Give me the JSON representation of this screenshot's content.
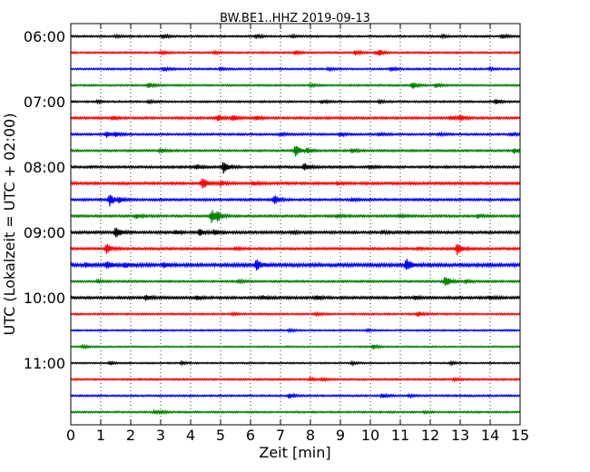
{
  "chart_data": {
    "type": "line",
    "title": "BW.BE1..HHZ 2019-09-13",
    "xlabel": "Zeit  [min]",
    "ylabel": "UTC (Lokalzeit = UTC + 02:00)",
    "xlim": [
      0,
      15
    ],
    "x_ticks": [
      0,
      1,
      2,
      3,
      4,
      5,
      6,
      7,
      8,
      9,
      10,
      11,
      12,
      13,
      14,
      15
    ],
    "x_tick_labels": [
      "0",
      "1",
      "2",
      "3",
      "4",
      "5",
      "6",
      "7",
      "8",
      "9",
      "10",
      "11",
      "12",
      "13",
      "14",
      "15"
    ],
    "grid": true,
    "y_ticks": [
      {
        "label": "06:00",
        "row": 0
      },
      {
        "label": "07:00",
        "row": 4
      },
      {
        "label": "08:00",
        "row": 8
      },
      {
        "label": "09:00",
        "row": 12
      },
      {
        "label": "10:00",
        "row": 16
      },
      {
        "label": "11:00",
        "row": 20
      }
    ],
    "row_minutes": 15,
    "series_colors": [
      "#000000",
      "#ff0000",
      "#0000ff",
      "#008000"
    ],
    "rows": [
      {
        "start": "06:00",
        "color": "#000000",
        "noise": 0.7,
        "spikes": [
          [
            1.5,
            1.2
          ],
          [
            3.1,
            2.2
          ],
          [
            6.2,
            2.0
          ],
          [
            7.4,
            1.3
          ],
          [
            12.4,
            1.1
          ],
          [
            14.4,
            2.5
          ]
        ]
      },
      {
        "start": "06:15",
        "color": "#ff0000",
        "noise": 0.7,
        "spikes": [
          [
            3.0,
            1.4
          ],
          [
            4.8,
            1.2
          ],
          [
            7.5,
            2.0
          ],
          [
            9.5,
            3.0
          ],
          [
            10.2,
            1.5
          ],
          [
            10.3,
            2.4
          ]
        ]
      },
      {
        "start": "06:30",
        "color": "#0000ff",
        "noise": 0.7,
        "spikes": [
          [
            3.1,
            2.4
          ],
          [
            5.0,
            1.5
          ],
          [
            8.6,
            1.4
          ],
          [
            10.7,
            2.0
          ],
          [
            14.0,
            1.2
          ]
        ]
      },
      {
        "start": "06:45",
        "color": "#008000",
        "noise": 0.7,
        "spikes": [
          [
            2.6,
            3.0
          ],
          [
            8.0,
            1.2
          ],
          [
            11.4,
            4.0
          ],
          [
            12.2,
            2.5
          ]
        ]
      },
      {
        "start": "07:00",
        "color": "#000000",
        "noise": 0.7,
        "spikes": [
          [
            0.9,
            1.2
          ],
          [
            2.6,
            1.3
          ],
          [
            8.4,
            1.8
          ],
          [
            10.3,
            1.5
          ],
          [
            14.2,
            2.5
          ]
        ]
      },
      {
        "start": "07:15",
        "color": "#ff0000",
        "noise": 0.9,
        "spikes": [
          [
            1.4,
            2.0
          ],
          [
            4.9,
            3.5
          ],
          [
            5.4,
            3.0
          ],
          [
            6.2,
            2.0
          ],
          [
            12.7,
            2.0
          ],
          [
            13.0,
            3.2
          ]
        ]
      },
      {
        "start": "07:30",
        "color": "#0000ff",
        "noise": 0.8,
        "spikes": [
          [
            1.2,
            3.2
          ],
          [
            1.5,
            2.0
          ],
          [
            7.0,
            1.8
          ],
          [
            9.0,
            2.0
          ],
          [
            10.3,
            1.5
          ],
          [
            12.3,
            1.4
          ],
          [
            14.7,
            1.8
          ]
        ]
      },
      {
        "start": "07:45",
        "color": "#008000",
        "noise": 0.8,
        "spikes": [
          [
            3.0,
            2.5
          ],
          [
            7.5,
            6.5
          ],
          [
            7.9,
            3.0
          ],
          [
            9.4,
            2.0
          ],
          [
            14.8,
            2.8
          ]
        ]
      },
      {
        "start": "08:00",
        "color": "#000000",
        "noise": 0.9,
        "spikes": [
          [
            4.2,
            2.5
          ],
          [
            5.1,
            6.5
          ],
          [
            7.8,
            4.0
          ],
          [
            10.0,
            1.5
          ]
        ]
      },
      {
        "start": "08:15",
        "color": "#ff0000",
        "noise": 1.0,
        "spikes": [
          [
            4.4,
            7.0
          ],
          [
            5.0,
            2.5
          ],
          [
            6.1,
            1.8
          ],
          [
            8.9,
            1.5
          ]
        ]
      },
      {
        "start": "08:30",
        "color": "#0000ff",
        "noise": 0.9,
        "spikes": [
          [
            1.3,
            6.5
          ],
          [
            1.6,
            2.5
          ],
          [
            6.8,
            5.0
          ],
          [
            9.4,
            1.5
          ]
        ]
      },
      {
        "start": "08:45",
        "color": "#008000",
        "noise": 0.9,
        "spikes": [
          [
            2.2,
            2.0
          ],
          [
            4.7,
            7.0
          ],
          [
            4.9,
            4.0
          ],
          [
            8.9,
            1.8
          ],
          [
            11.0,
            1.6
          ],
          [
            13.6,
            1.8
          ]
        ]
      },
      {
        "start": "09:00",
        "color": "#000000",
        "noise": 1.0,
        "spikes": [
          [
            1.5,
            6.5
          ],
          [
            3.5,
            2.0
          ],
          [
            4.3,
            3.5
          ],
          [
            4.8,
            3.0
          ],
          [
            7.4,
            1.3
          ],
          [
            10.4,
            1.4
          ]
        ]
      },
      {
        "start": "09:15",
        "color": "#ff0000",
        "noise": 0.9,
        "spikes": [
          [
            1.2,
            5.5
          ],
          [
            5.5,
            1.4
          ],
          [
            11.6,
            1.4
          ],
          [
            12.9,
            6.5
          ]
        ]
      },
      {
        "start": "09:30",
        "color": "#0000ff",
        "noise": 1.3,
        "spikes": [
          [
            0.5,
            2.5
          ],
          [
            1.2,
            3.5
          ],
          [
            1.8,
            2.5
          ],
          [
            3.1,
            2.5
          ],
          [
            6.2,
            6.0
          ],
          [
            11.2,
            7.0
          ]
        ]
      },
      {
        "start": "09:45",
        "color": "#008000",
        "noise": 0.8,
        "spikes": [
          [
            0.9,
            1.4
          ],
          [
            5.6,
            1.6
          ],
          [
            12.5,
            6.5
          ],
          [
            13.2,
            1.6
          ]
        ]
      },
      {
        "start": "10:00",
        "color": "#000000",
        "noise": 1.0,
        "spikes": [
          [
            2.5,
            3.0
          ],
          [
            4.2,
            2.0
          ],
          [
            6.4,
            2.0
          ],
          [
            8.2,
            2.2
          ],
          [
            11.5,
            1.8
          ],
          [
            14.0,
            1.6
          ]
        ]
      },
      {
        "start": "10:15",
        "color": "#ff0000",
        "noise": 0.7,
        "spikes": [
          [
            5.4,
            1.2
          ],
          [
            8.2,
            1.2
          ],
          [
            11.6,
            2.8
          ]
        ]
      },
      {
        "start": "10:30",
        "color": "#0000ff",
        "noise": 0.6,
        "spikes": [
          [
            7.3,
            1.4
          ],
          [
            9.9,
            1.0
          ]
        ]
      },
      {
        "start": "10:45",
        "color": "#008000",
        "noise": 0.6,
        "spikes": [
          [
            0.4,
            1.5
          ],
          [
            10.1,
            2.5
          ]
        ]
      },
      {
        "start": "11:00",
        "color": "#000000",
        "noise": 0.6,
        "spikes": [
          [
            1.3,
            1.5
          ],
          [
            3.7,
            1.2
          ],
          [
            9.4,
            1.3
          ],
          [
            12.7,
            1.2
          ]
        ]
      },
      {
        "start": "11:15",
        "color": "#ff0000",
        "noise": 0.7,
        "spikes": [
          [
            8.0,
            1.8
          ],
          [
            8.4,
            1.5
          ],
          [
            12.8,
            1.2
          ]
        ]
      },
      {
        "start": "11:30",
        "color": "#0000ff",
        "noise": 0.7,
        "spikes": [
          [
            7.3,
            2.6
          ],
          [
            10.4,
            2.6
          ],
          [
            11.3,
            1.5
          ]
        ]
      },
      {
        "start": "11:45",
        "color": "#008000",
        "noise": 0.7,
        "spikes": [
          [
            2.8,
            1.4
          ],
          [
            3.0,
            1.2
          ],
          [
            11.8,
            1.0
          ]
        ]
      }
    ]
  }
}
